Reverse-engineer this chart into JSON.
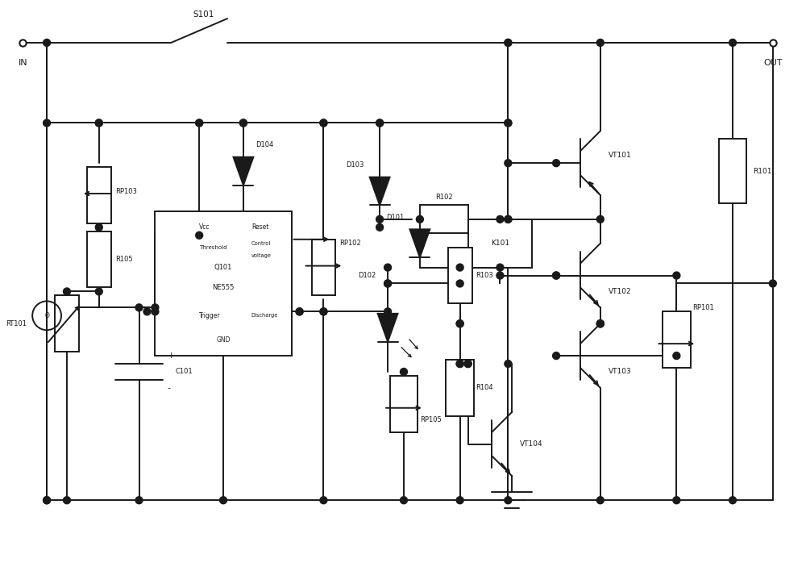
{
  "bg_color": "#ffffff",
  "lc": "#1a1a1a",
  "lw": 1.4,
  "fig_w": 10.0,
  "fig_h": 7.03,
  "xlim": [
    0,
    100
  ],
  "ylim": [
    0,
    70
  ]
}
